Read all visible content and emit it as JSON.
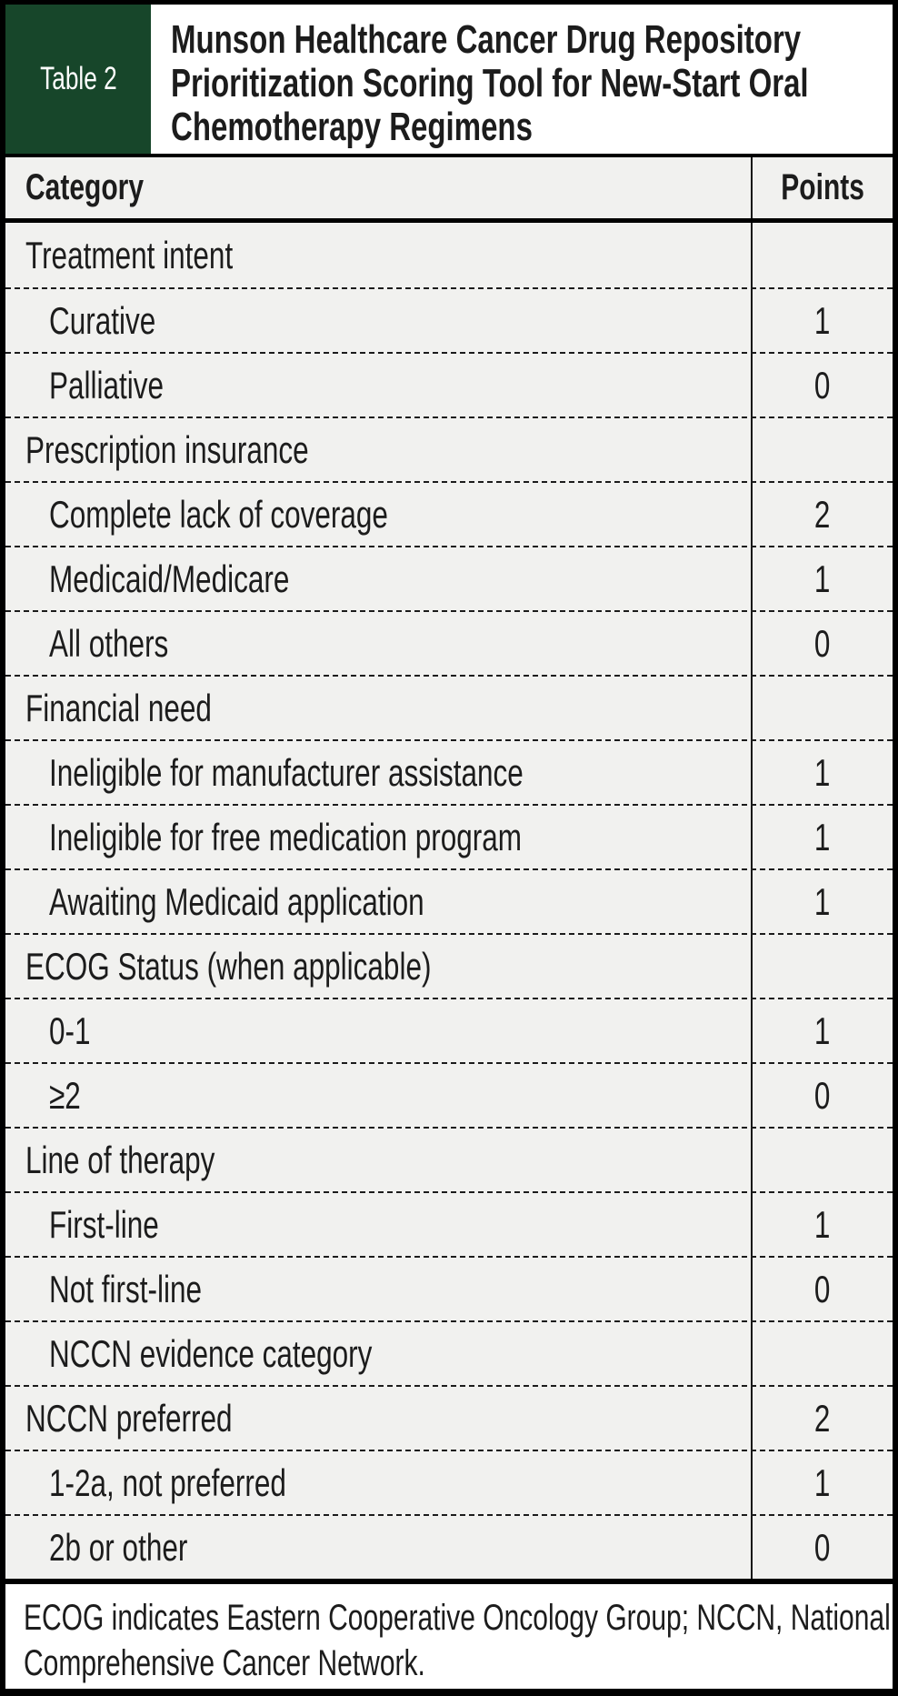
{
  "table_label": "Table 2",
  "title_lines": [
    "Munson Healthcare Cancer Drug Repository",
    "Prioritization Scoring Tool for New-Start Oral",
    "Chemotherapy Regimens"
  ],
  "columns": {
    "category": "Category",
    "points": "Points"
  },
  "rows": [
    {
      "label": "Treatment intent",
      "points": "",
      "level": "group"
    },
    {
      "label": "Curative",
      "points": "1",
      "level": "sub"
    },
    {
      "label": "Palliative",
      "points": "0",
      "level": "sub"
    },
    {
      "label": "Prescription insurance",
      "points": "",
      "level": "group"
    },
    {
      "label": "Complete lack of coverage",
      "points": "2",
      "level": "sub"
    },
    {
      "label": "Medicaid/Medicare",
      "points": "1",
      "level": "sub"
    },
    {
      "label": "All others",
      "points": "0",
      "level": "sub"
    },
    {
      "label": "Financial need",
      "points": "",
      "level": "group"
    },
    {
      "label": "Ineligible for manufacturer assistance",
      "points": "1",
      "level": "sub"
    },
    {
      "label": "Ineligible for free medication program",
      "points": "1",
      "level": "sub"
    },
    {
      "label": "Awaiting Medicaid application",
      "points": "1",
      "level": "sub"
    },
    {
      "label": "ECOG Status (when applicable)",
      "points": "",
      "level": "group"
    },
    {
      "label": "0-1",
      "points": "1",
      "level": "sub"
    },
    {
      "label": "≥2",
      "points": "0",
      "level": "sub"
    },
    {
      "label": "Line of therapy",
      "points": "",
      "level": "group"
    },
    {
      "label": "First-line",
      "points": "1",
      "level": "sub"
    },
    {
      "label": "Not first-line",
      "points": "0",
      "level": "sub"
    },
    {
      "label": "NCCN evidence category",
      "points": "",
      "level": "sub"
    },
    {
      "label": "NCCN preferred",
      "points": "2",
      "level": "group"
    },
    {
      "label": "1-2a, not preferred",
      "points": "1",
      "level": "sub"
    },
    {
      "label": "2b or other",
      "points": "0",
      "level": "sub"
    }
  ],
  "footnote_lines": [
    "ECOG indicates Eastern Cooperative Oncology Group; NCCN, National",
    "Comprehensive Cancer Network."
  ],
  "colors": {
    "accent_green": "#17462a",
    "row_bg": "#f1f1ef",
    "text": "#1c1c1c",
    "line": "#000000"
  }
}
